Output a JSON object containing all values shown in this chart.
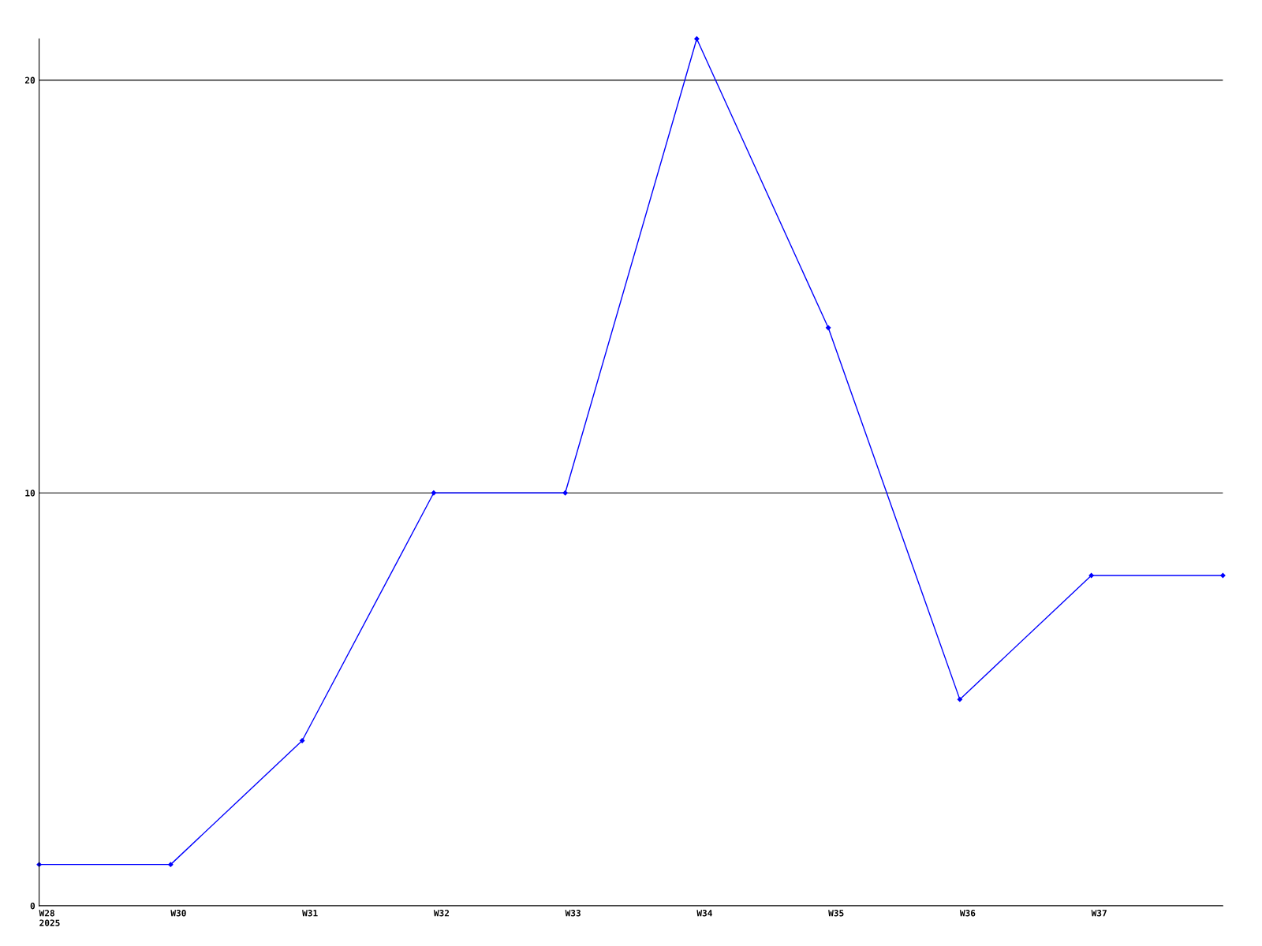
{
  "chart_data": {
    "type": "line",
    "categories": [
      "W28\n2025",
      "W30",
      "W31",
      "W32",
      "W33",
      "W34",
      "W35",
      "W36",
      "W37",
      null
    ],
    "series": [
      {
        "color": "#0000ff",
        "values": [
          1,
          1,
          4,
          10,
          10,
          21,
          14,
          5,
          8,
          8
        ]
      }
    ],
    "ylim": [
      0,
      21
    ],
    "yticks": [
      0,
      10,
      20
    ],
    "grid": "y",
    "marker": "diamond",
    "line_style": "solid",
    "legend": false
  }
}
